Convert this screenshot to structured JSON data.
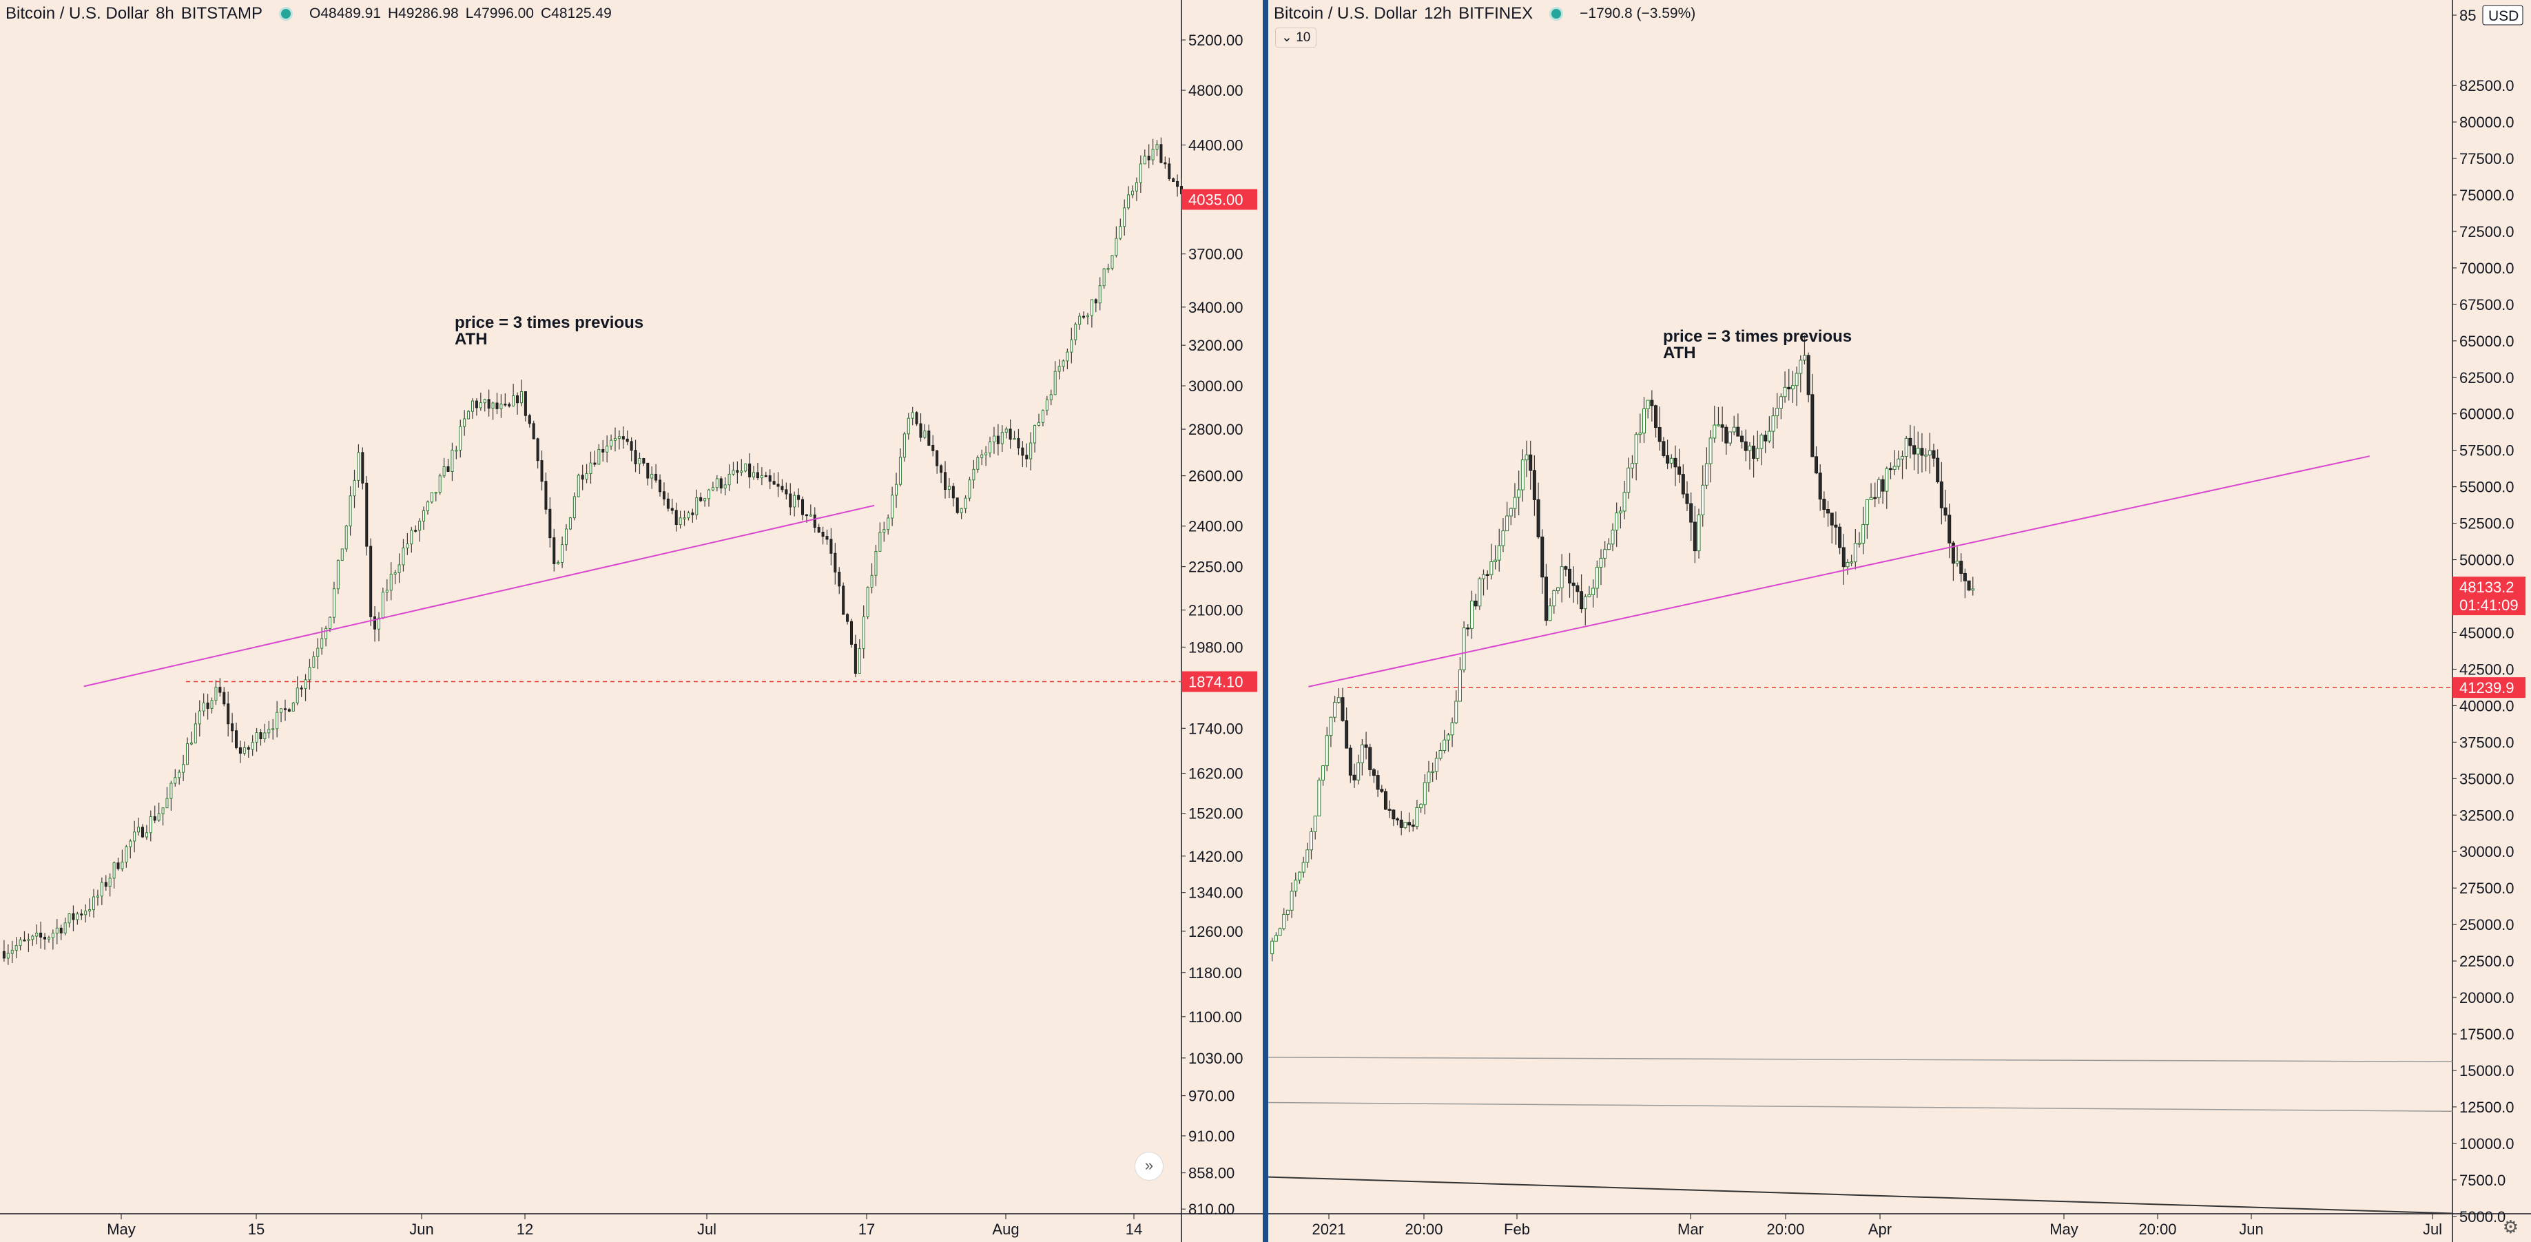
{
  "chart_data": [
    {
      "type": "candlestick",
      "pair": "Bitcoin / U.S. Dollar",
      "interval": "8h",
      "exchange": "BITSTAMP",
      "ohlc": {
        "o": "O48489.91",
        "h": "H49286.98",
        "l": "L47996.00",
        "c": "C48125.49"
      },
      "scale": "log",
      "ylim": [
        790,
        5200
      ],
      "y_ticks": [
        "5200.00",
        "4800.00",
        "4400.00",
        "3700.00",
        "3400.00",
        "3200.00",
        "3000.00",
        "2800.00",
        "2600.00",
        "2400.00",
        "2250.00",
        "2100.00",
        "1980.00",
        "1740.00",
        "1620.00",
        "1520.00",
        "1420.00",
        "1340.00",
        "1260.00",
        "1180.00",
        "1100.00",
        "1030.00",
        "970.00",
        "910.00",
        "858.00",
        "810.00"
      ],
      "x_ticks": [
        "May",
        "15",
        "Jun",
        "12",
        "Jul",
        "17",
        "Aug",
        "14"
      ],
      "current_price": "4035.00",
      "level_price": "1874.10",
      "level_value": 1874.1,
      "trendline": {
        "from": {
          "t": 0.071,
          "v": 1860
        },
        "to": {
          "t": 0.74,
          "v": 2480
        }
      },
      "annotation": {
        "line1": "price = 3 times previous",
        "line2": "ATH"
      },
      "price_path": [
        [
          0.0,
          1220
        ],
        [
          0.04,
          1250
        ],
        [
          0.08,
          1320
        ],
        [
          0.11,
          1450
        ],
        [
          0.14,
          1540
        ],
        [
          0.17,
          1780
        ],
        [
          0.185,
          1850
        ],
        [
          0.195,
          1740
        ],
        [
          0.205,
          1660
        ],
        [
          0.22,
          1730
        ],
        [
          0.24,
          1780
        ],
        [
          0.26,
          1900
        ],
        [
          0.28,
          2100
        ],
        [
          0.295,
          2450
        ],
        [
          0.305,
          2720
        ],
        [
          0.315,
          1980
        ],
        [
          0.325,
          2150
        ],
        [
          0.34,
          2300
        ],
        [
          0.36,
          2450
        ],
        [
          0.38,
          2650
        ],
        [
          0.4,
          2920
        ],
        [
          0.43,
          2880
        ],
        [
          0.44,
          2970
        ],
        [
          0.455,
          2700
        ],
        [
          0.47,
          2200
        ],
        [
          0.49,
          2600
        ],
        [
          0.52,
          2780
        ],
        [
          0.55,
          2600
        ],
        [
          0.575,
          2400
        ],
        [
          0.6,
          2550
        ],
        [
          0.63,
          2620
        ],
        [
          0.66,
          2540
        ],
        [
          0.68,
          2460
        ],
        [
          0.7,
          2350
        ],
        [
          0.71,
          2180
        ],
        [
          0.725,
          1900
        ],
        [
          0.74,
          2300
        ],
        [
          0.755,
          2500
        ],
        [
          0.77,
          2860
        ],
        [
          0.79,
          2700
        ],
        [
          0.81,
          2450
        ],
        [
          0.83,
          2680
        ],
        [
          0.85,
          2780
        ],
        [
          0.87,
          2700
        ],
        [
          0.89,
          3000
        ],
        [
          0.91,
          3300
        ],
        [
          0.93,
          3480
        ],
        [
          0.95,
          3900
        ],
        [
          0.965,
          4250
        ],
        [
          0.98,
          4380
        ],
        [
          0.99,
          4200
        ],
        [
          1.0,
          4035
        ]
      ]
    },
    {
      "type": "candlestick",
      "pair": "Bitcoin / U.S. Dollar",
      "interval": "12h",
      "exchange": "BITFINEX",
      "change": "−1790.8 (−3.59%)",
      "indicator_label": "10",
      "currency": "USD",
      "scale": "linear",
      "ylim": [
        4800,
        86000
      ],
      "y_ticks": [
        "85",
        "82500.0",
        "80000.0",
        "77500.0",
        "75000.0",
        "72500.0",
        "70000.0",
        "67500.0",
        "65000.0",
        "62500.0",
        "60000.0",
        "57500.0",
        "55000.0",
        "52500.0",
        "50000.0",
        "47500.0",
        "45000.0",
        "42500.0",
        "40000.0",
        "37500.0",
        "35000.0",
        "32500.0",
        "30000.0",
        "27500.0",
        "25000.0",
        "22500.0",
        "20000.0",
        "17500.0",
        "15000.0",
        "12500.0",
        "10000.0",
        "7500.0",
        "5000.0"
      ],
      "x_ticks": [
        "2021",
        "20:00",
        "Feb",
        "Mar",
        "20:00",
        "Apr",
        "May",
        "20:00",
        "Jun",
        "Jul"
      ],
      "current_price": "48133.2",
      "countdown": "01:41:09",
      "level_price": "41239.9",
      "level_value": 41239.9,
      "trendline": {
        "from": {
          "t": 0.034,
          "v": 41300
        },
        "to": {
          "t": 0.93,
          "v": 57100
        }
      },
      "annotation": {
        "line1": "price = 3 times previous",
        "line2": "ATH"
      },
      "price_path": [
        [
          0.0,
          23000
        ],
        [
          0.02,
          27000
        ],
        [
          0.035,
          30500
        ],
        [
          0.05,
          38000
        ],
        [
          0.06,
          41000
        ],
        [
          0.07,
          34500
        ],
        [
          0.08,
          37500
        ],
        [
          0.09,
          35000
        ],
        [
          0.105,
          32000
        ],
        [
          0.12,
          31500
        ],
        [
          0.135,
          35000
        ],
        [
          0.15,
          37500
        ],
        [
          0.16,
          40500
        ],
        [
          0.165,
          45000
        ],
        [
          0.18,
          48500
        ],
        [
          0.2,
          52000
        ],
        [
          0.215,
          56500
        ],
        [
          0.22,
          57500
        ],
        [
          0.235,
          46000
        ],
        [
          0.25,
          50000
        ],
        [
          0.265,
          46500
        ],
        [
          0.28,
          49500
        ],
        [
          0.295,
          53000
        ],
        [
          0.31,
          58000
        ],
        [
          0.32,
          61000
        ],
        [
          0.335,
          57000
        ],
        [
          0.35,
          55000
        ],
        [
          0.36,
          51000
        ],
        [
          0.375,
          59000
        ],
        [
          0.395,
          58500
        ],
        [
          0.41,
          57000
        ],
        [
          0.425,
          59000
        ],
        [
          0.44,
          62000
        ],
        [
          0.455,
          63500
        ],
        [
          0.46,
          56000
        ],
        [
          0.475,
          53000
        ],
        [
          0.49,
          49000
        ],
        [
          0.505,
          53500
        ],
        [
          0.52,
          55500
        ],
        [
          0.535,
          57500
        ],
        [
          0.55,
          58000
        ],
        [
          0.565,
          56000
        ],
        [
          0.575,
          51000
        ],
        [
          0.585,
          48500
        ],
        [
          0.595,
          48133
        ]
      ],
      "extra_lines": [
        {
          "from": {
            "t": 0.0,
            "v": 15900
          },
          "to": {
            "t": 1.0,
            "v": 15600
          }
        },
        {
          "from": {
            "t": 0.0,
            "v": 12800
          },
          "to": {
            "t": 1.0,
            "v": 12200
          }
        },
        {
          "from": {
            "t": 0.0,
            "v": 7700
          },
          "to": {
            "t": 1.0,
            "v": 5200
          }
        }
      ]
    }
  ]
}
